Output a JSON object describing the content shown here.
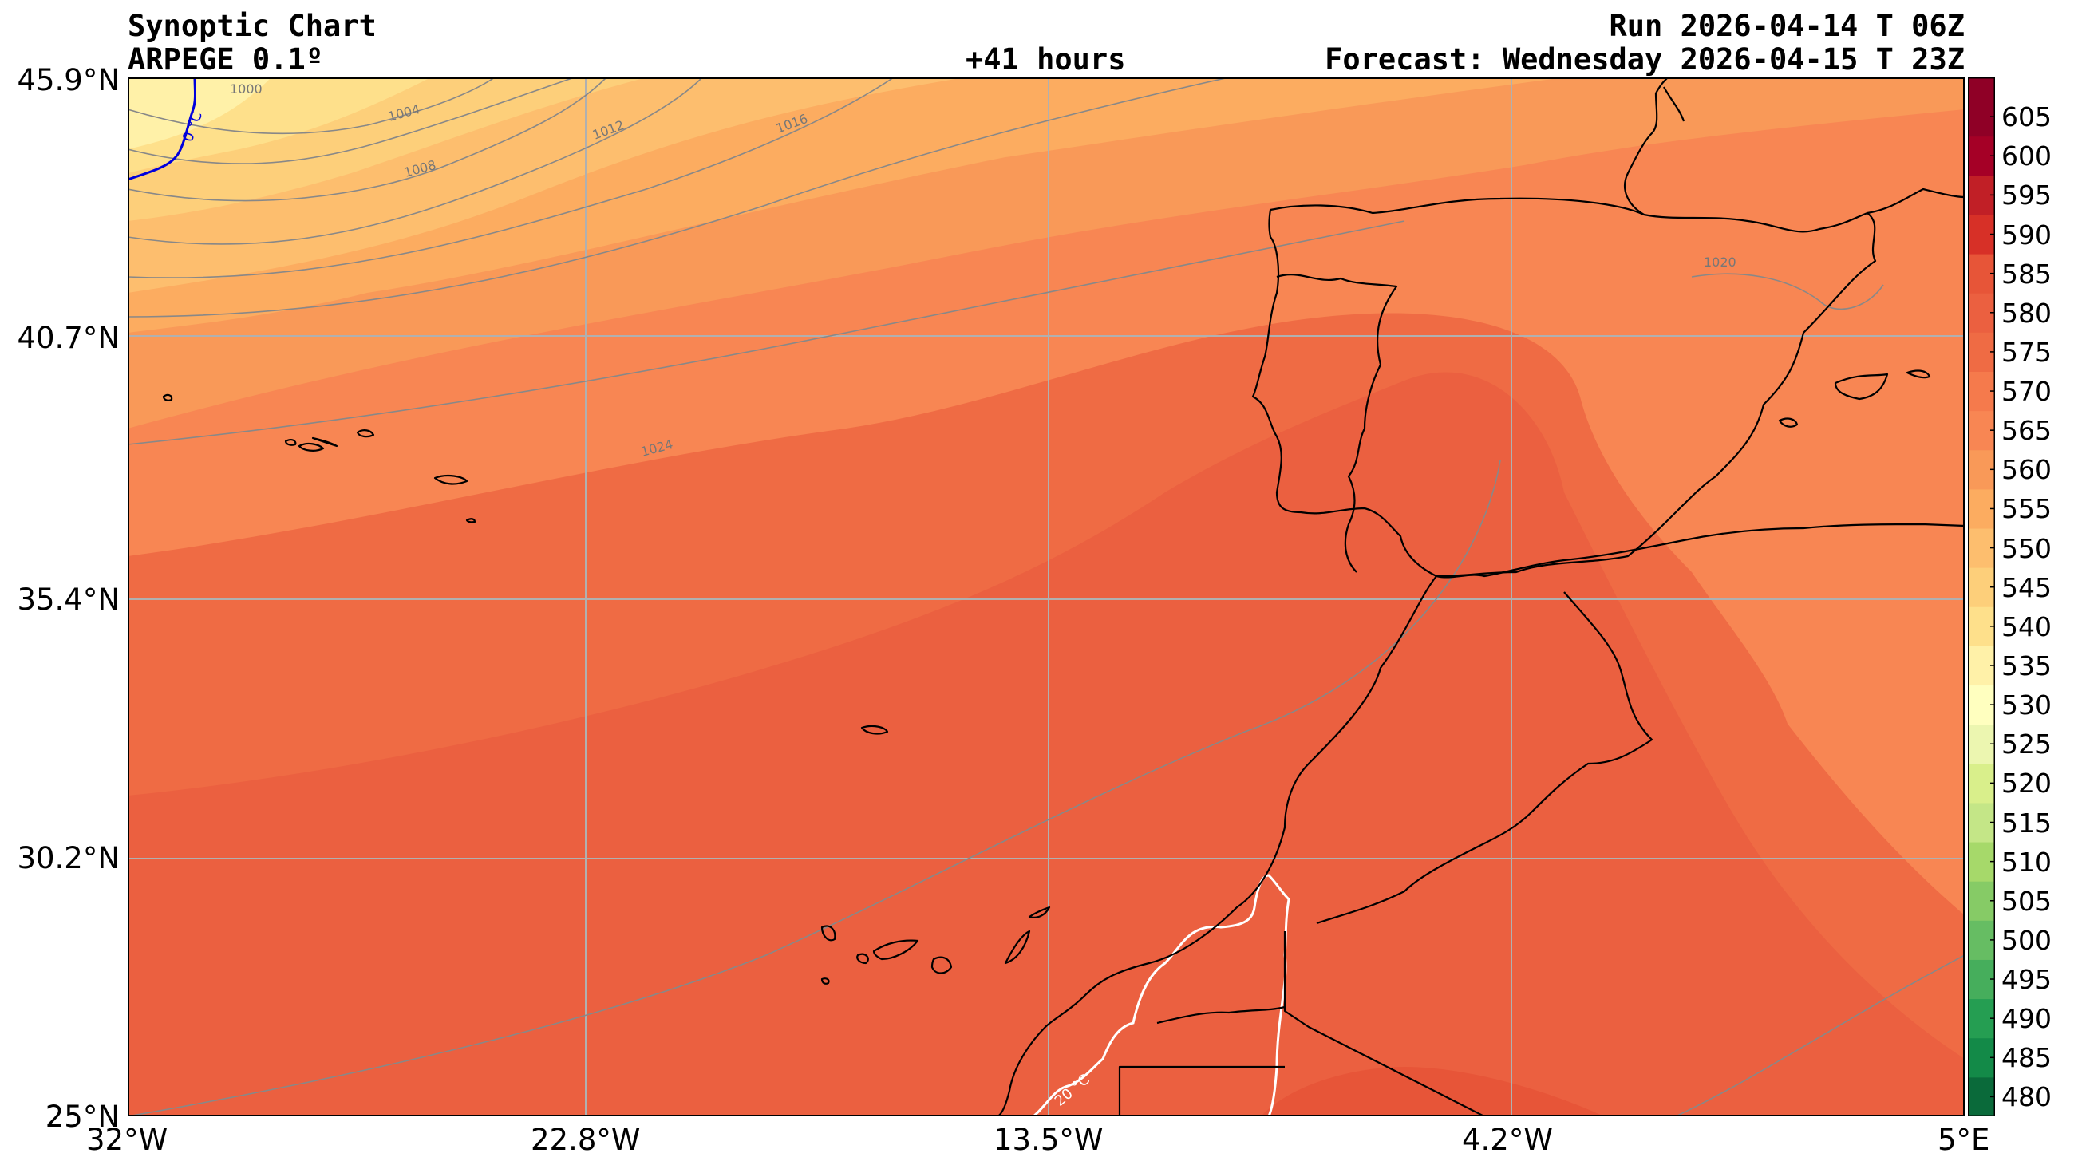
{
  "header": {
    "title": "Synoptic Chart",
    "model": "ARPEGE 0.1º",
    "lead": "+41 hours",
    "run": "Run 2026-04-14 T 06Z",
    "forecast": "Forecast: Wednesday 2026-04-15 T 23Z"
  },
  "map": {
    "lon_range": [
      -32,
      5
    ],
    "lat_range": [
      25,
      45.9
    ],
    "lat_labels": [
      "45.9°N",
      "40.7°N",
      "35.4°N",
      "30.2°N",
      "25°N"
    ],
    "lon_labels": [
      "32°W",
      "22.8°W",
      "13.5°W",
      "4.2°W",
      "5°E"
    ],
    "isobar_labels": [
      "1000",
      "1004",
      "1008",
      "1012",
      "1016",
      "1020",
      "1024"
    ],
    "isotherm_labels": [
      "0 °C",
      "20 °C"
    ],
    "isobar_color": "#888888",
    "coast_color": "#000000"
  },
  "colorbar": {
    "levels": [
      480,
      485,
      490,
      495,
      500,
      505,
      510,
      515,
      520,
      525,
      530,
      535,
      540,
      545,
      550,
      555,
      560,
      565,
      570,
      575,
      580,
      585,
      590,
      595,
      600,
      605
    ],
    "colors": [
      "#0a6a3a",
      "#138a48",
      "#259e52",
      "#46ae5c",
      "#66bd63",
      "#86cb66",
      "#a6d96a",
      "#c4e687",
      "#d9ef8b",
      "#ecf6b0",
      "#ffffbf",
      "#fff1a8",
      "#fee08b",
      "#fdcf7a",
      "#fdbe6e",
      "#fcac60",
      "#f99958",
      "#f88653",
      "#f57a4c",
      "#ef6b44",
      "#eb6040",
      "#e75538",
      "#d73027",
      "#c11f26",
      "#a50026",
      "#8f0026"
    ]
  }
}
